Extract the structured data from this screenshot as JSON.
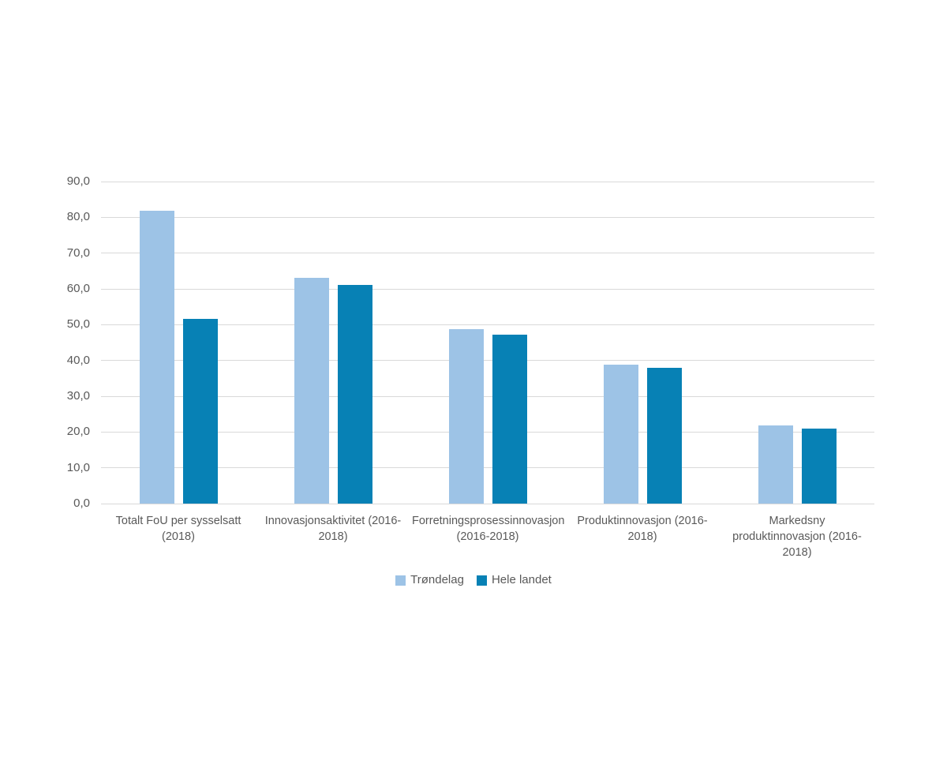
{
  "page": {
    "background": "#ffffff"
  },
  "chart_data": {
    "type": "bar",
    "title": "",
    "xlabel": "",
    "ylabel": "",
    "categories": [
      "Totalt FoU per sysselsatt (2018)",
      "Innovasjonsaktivitet (2016-2018)",
      "Forretningsprosessinnovasjon (2016-2018)",
      "Produktinnovasjon (2016-2018)",
      "Markedsny produktinnovasjon (2016-2018)"
    ],
    "series": [
      {
        "name": "Trøndelag",
        "color": "#9DC3E6",
        "values": [
          81.8,
          63.0,
          48.8,
          38.9,
          21.8
        ]
      },
      {
        "name": "Hele landet",
        "color": "#0781B5",
        "values": [
          51.7,
          61.0,
          47.2,
          38.0,
          20.9
        ]
      }
    ],
    "ylim": [
      0,
      90
    ],
    "y_tick_step": 10,
    "y_tick_labels": [
      "0,0",
      "10,0",
      "20,0",
      "30,0",
      "40,0",
      "50,0",
      "60,0",
      "70,0",
      "80,0",
      "90,0"
    ],
    "grid": "horizontal",
    "gridline_color": "#D9D9D9",
    "axis_text_color": "#595959",
    "legend_position": "bottom",
    "legend": {
      "items": [
        {
          "label": "Trøndelag"
        },
        {
          "label": "Hele landet"
        }
      ]
    }
  }
}
